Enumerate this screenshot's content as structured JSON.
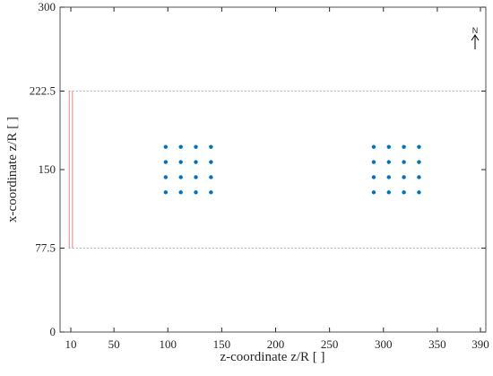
{
  "chart_data": {
    "type": "scatter",
    "xlabel": "z-coordinate z/R [ ]",
    "ylabel": "x-coordinate z/R [ ]",
    "annotation": "N",
    "x": [
      98,
      112,
      126,
      140,
      98,
      112,
      126,
      140,
      98,
      112,
      126,
      140,
      98,
      112,
      126,
      140,
      291,
      305,
      319,
      333,
      291,
      305,
      319,
      333,
      291,
      305,
      319,
      333,
      291,
      305,
      319,
      333
    ],
    "values": [
      171,
      171,
      171,
      171,
      157,
      157,
      157,
      157,
      143,
      143,
      143,
      143,
      129,
      129,
      129,
      129,
      171,
      171,
      171,
      171,
      157,
      157,
      157,
      157,
      143,
      143,
      143,
      143,
      129,
      129,
      129,
      129
    ],
    "color": "#0072bd",
    "domain_lines": {
      "x": [
        8,
        395
      ],
      "y": [
        77.5,
        222.5
      ],
      "color": "#b0b0b0"
    },
    "inlet_lines": {
      "x": [
        8.5,
        11.5
      ],
      "color": "#f08080"
    },
    "xlim": [
      0,
      395
    ],
    "xticks": [
      10,
      50,
      100,
      150,
      200,
      250,
      300,
      350,
      390
    ],
    "ylim": [
      0,
      300
    ],
    "yticks": [
      0,
      77.5,
      150,
      222.5,
      300
    ]
  }
}
